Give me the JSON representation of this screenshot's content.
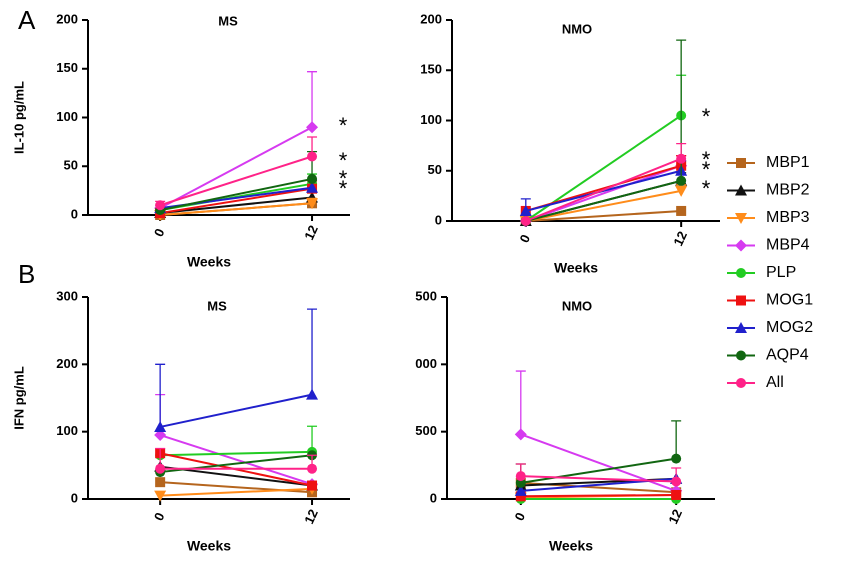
{
  "panel_labels": [
    "A",
    "B"
  ],
  "chart_data": [
    {
      "type": "line",
      "title": "MS",
      "ylabel": "IL-10 pg/mL",
      "xlabel": "Weeks",
      "x": [
        0,
        12
      ],
      "xlim": [
        -5.7,
        15
      ],
      "xticks": [
        0,
        12
      ],
      "ylim": [
        0,
        200
      ],
      "yticks": [
        0,
        50,
        100,
        150,
        200
      ],
      "annotations": [
        "*",
        "*",
        "*",
        "*"
      ],
      "series": [
        {
          "name": "MBP1",
          "color": "#b5651d",
          "marker": "square",
          "values": [
            0,
            12
          ],
          "errors": [
            null,
            4
          ]
        },
        {
          "name": "MBP2",
          "color": "#111111",
          "marker": "triangle-up",
          "values": [
            2,
            18
          ],
          "errors": [
            null,
            6
          ]
        },
        {
          "name": "MBP3",
          "color": "#ff8c1a",
          "marker": "triangle-down",
          "values": [
            0,
            12
          ],
          "errors": [
            null,
            5
          ]
        },
        {
          "name": "MBP4",
          "color": "#d63af0",
          "marker": "diamond",
          "values": [
            7,
            90
          ],
          "errors": [
            3,
            57
          ]
        },
        {
          "name": "PLP",
          "color": "#22cc22",
          "marker": "circle",
          "values": [
            5,
            32
          ],
          "errors": [
            null,
            10
          ]
        },
        {
          "name": "MOG1",
          "color": "#ee1111",
          "marker": "square",
          "values": [
            2,
            27
          ],
          "errors": [
            null,
            8
          ]
        },
        {
          "name": "MOG2",
          "color": "#2020cc",
          "marker": "triangle-up",
          "values": [
            7,
            28
          ],
          "errors": [
            null,
            8
          ]
        },
        {
          "name": "AQP4",
          "color": "#116611",
          "marker": "circle",
          "values": [
            5,
            37
          ],
          "errors": [
            null,
            28
          ]
        },
        {
          "name": "All",
          "color": "#ff2288",
          "marker": "circle",
          "values": [
            10,
            60
          ],
          "errors": [
            4,
            20
          ]
        }
      ]
    },
    {
      "type": "line",
      "title": "NMO",
      "xlabel": "Weeks",
      "x": [
        0,
        12
      ],
      "xlim": [
        -5.7,
        15
      ],
      "xticks": [
        0,
        12
      ],
      "ylim": [
        0,
        200
      ],
      "yticks": [
        0,
        50,
        100,
        150,
        200
      ],
      "annotations": [
        "*",
        "*",
        "*",
        "*"
      ],
      "series": [
        {
          "name": "MBP1",
          "color": "#b5651d",
          "marker": "square",
          "values": [
            0,
            10
          ],
          "errors": [
            null,
            null
          ]
        },
        {
          "name": "MBP2",
          "color": "#111111",
          "marker": "triangle-up",
          "values": [
            0,
            40
          ],
          "errors": [
            null,
            8
          ]
        },
        {
          "name": "MBP3",
          "color": "#ff8c1a",
          "marker": "triangle-down",
          "values": [
            0,
            30
          ],
          "errors": [
            null,
            6
          ]
        },
        {
          "name": "MBP4",
          "color": "#d63af0",
          "marker": "diamond",
          "values": [
            0,
            55
          ],
          "errors": [
            null,
            10
          ]
        },
        {
          "name": "PLP",
          "color": "#22cc22",
          "marker": "circle",
          "values": [
            0,
            105
          ],
          "errors": [
            null,
            40
          ]
        },
        {
          "name": "MOG1",
          "color": "#ee1111",
          "marker": "square",
          "values": [
            10,
            55
          ],
          "errors": [
            null,
            10
          ]
        },
        {
          "name": "MOG2",
          "color": "#2020cc",
          "marker": "triangle-up",
          "values": [
            10,
            50
          ],
          "errors": [
            12,
            10
          ]
        },
        {
          "name": "AQP4",
          "color": "#116611",
          "marker": "circle",
          "values": [
            0,
            40
          ],
          "errors": [
            null,
            140
          ]
        },
        {
          "name": "All",
          "color": "#ff2288",
          "marker": "circle",
          "values": [
            0,
            62
          ],
          "errors": [
            null,
            15
          ]
        }
      ]
    },
    {
      "type": "line",
      "title": "MS",
      "ylabel": "IFN pg/mL",
      "xlabel": "Weeks",
      "x": [
        0,
        12
      ],
      "xlim": [
        -5.7,
        15
      ],
      "xticks": [
        0,
        12
      ],
      "ylim": [
        0,
        300
      ],
      "yticks": [
        0,
        100,
        200,
        300
      ],
      "series": [
        {
          "name": "MBP1",
          "color": "#b5651d",
          "marker": "square",
          "values": [
            25,
            10
          ],
          "errors": [
            null,
            null
          ]
        },
        {
          "name": "MBP2",
          "color": "#111111",
          "marker": "triangle-up",
          "values": [
            48,
            20
          ],
          "errors": [
            null,
            null
          ]
        },
        {
          "name": "MBP3",
          "color": "#ff8c1a",
          "marker": "triangle-down",
          "values": [
            5,
            15
          ],
          "errors": [
            null,
            null
          ]
        },
        {
          "name": "MBP4",
          "color": "#d63af0",
          "marker": "diamond",
          "values": [
            95,
            22
          ],
          "errors": [
            60,
            null
          ]
        },
        {
          "name": "PLP",
          "color": "#22cc22",
          "marker": "circle",
          "values": [
            65,
            70
          ],
          "errors": [
            null,
            38
          ]
        },
        {
          "name": "MOG1",
          "color": "#ee1111",
          "marker": "square",
          "values": [
            68,
            20
          ],
          "errors": [
            null,
            null
          ]
        },
        {
          "name": "MOG2",
          "color": "#2020cc",
          "marker": "triangle-up",
          "values": [
            107,
            155
          ],
          "errors": [
            93,
            127
          ]
        },
        {
          "name": "AQP4",
          "color": "#116611",
          "marker": "circle",
          "values": [
            40,
            65
          ],
          "errors": [
            null,
            null
          ]
        },
        {
          "name": "All",
          "color": "#ff2288",
          "marker": "circle",
          "values": [
            45,
            45
          ],
          "errors": [
            30,
            20
          ]
        }
      ]
    },
    {
      "type": "line",
      "title": "NMO",
      "xlabel": "Weeks",
      "x": [
        0,
        12
      ],
      "xlim": [
        -5.7,
        15
      ],
      "xticks": [
        0,
        12
      ],
      "ylim": [
        0,
        1500
      ],
      "yticks": [
        0,
        {
          "value": 500,
          "label": "500"
        },
        {
          "value": 1000,
          "label": "000"
        },
        {
          "value": 1500,
          "label": "500"
        }
      ],
      "series": [
        {
          "name": "MBP1",
          "color": "#b5651d",
          "marker": "square",
          "values": [
            120,
            50
          ],
          "errors": [
            null,
            null
          ]
        },
        {
          "name": "MBP2",
          "color": "#111111",
          "marker": "triangle-up",
          "values": [
            100,
            150
          ],
          "errors": [
            null,
            null
          ]
        },
        {
          "name": "MBP3",
          "color": "#ff8c1a",
          "marker": "triangle-down",
          "values": [
            10,
            30
          ],
          "errors": [
            null,
            null
          ]
        },
        {
          "name": "MBP4",
          "color": "#d63af0",
          "marker": "diamond",
          "values": [
            480,
            60
          ],
          "errors": [
            470,
            null
          ]
        },
        {
          "name": "PLP",
          "color": "#22cc22",
          "marker": "circle",
          "values": [
            0,
            0
          ],
          "errors": [
            null,
            null
          ]
        },
        {
          "name": "MOG1",
          "color": "#ee1111",
          "marker": "square",
          "values": [
            20,
            30
          ],
          "errors": [
            null,
            null
          ]
        },
        {
          "name": "MOG2",
          "color": "#2020cc",
          "marker": "triangle-up",
          "values": [
            60,
            150
          ],
          "errors": [
            null,
            null
          ]
        },
        {
          "name": "AQP4",
          "color": "#116611",
          "marker": "circle",
          "values": [
            120,
            300
          ],
          "errors": [
            140,
            280
          ]
        },
        {
          "name": "All",
          "color": "#ff2288",
          "marker": "circle",
          "values": [
            170,
            130
          ],
          "errors": [
            90,
            100
          ]
        }
      ]
    }
  ]
}
